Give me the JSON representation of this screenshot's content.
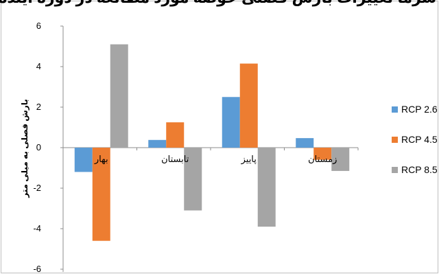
{
  "chart_data": {
    "type": "bar",
    "title": "",
    "title_visible_fragment": "ی سرما تغییرات بارش فصلی حوضه مورد مطالعه در دوره آینده",
    "xlabel": "",
    "ylabel": "بارش فصلی به میلی متر",
    "ylim": [
      -6,
      6
    ],
    "yticks": [
      6,
      4,
      2,
      0,
      -2,
      -4,
      -6
    ],
    "categories": [
      "بهار",
      "تابستان",
      "پاییز",
      "زمستان"
    ],
    "series": [
      {
        "name": "RCP 2.6",
        "color": "#5B9BD5",
        "values": [
          -1.2,
          0.38,
          2.5,
          0.47
        ]
      },
      {
        "name": "RCP 4.5",
        "color": "#ED7D31",
        "values": [
          -4.6,
          1.25,
          4.15,
          -0.6
        ]
      },
      {
        "name": "RCP 8.5",
        "color": "#A5A5A5",
        "values": [
          5.1,
          -3.1,
          -3.9,
          -1.15
        ]
      }
    ],
    "legend_position": "right",
    "grid": false
  }
}
